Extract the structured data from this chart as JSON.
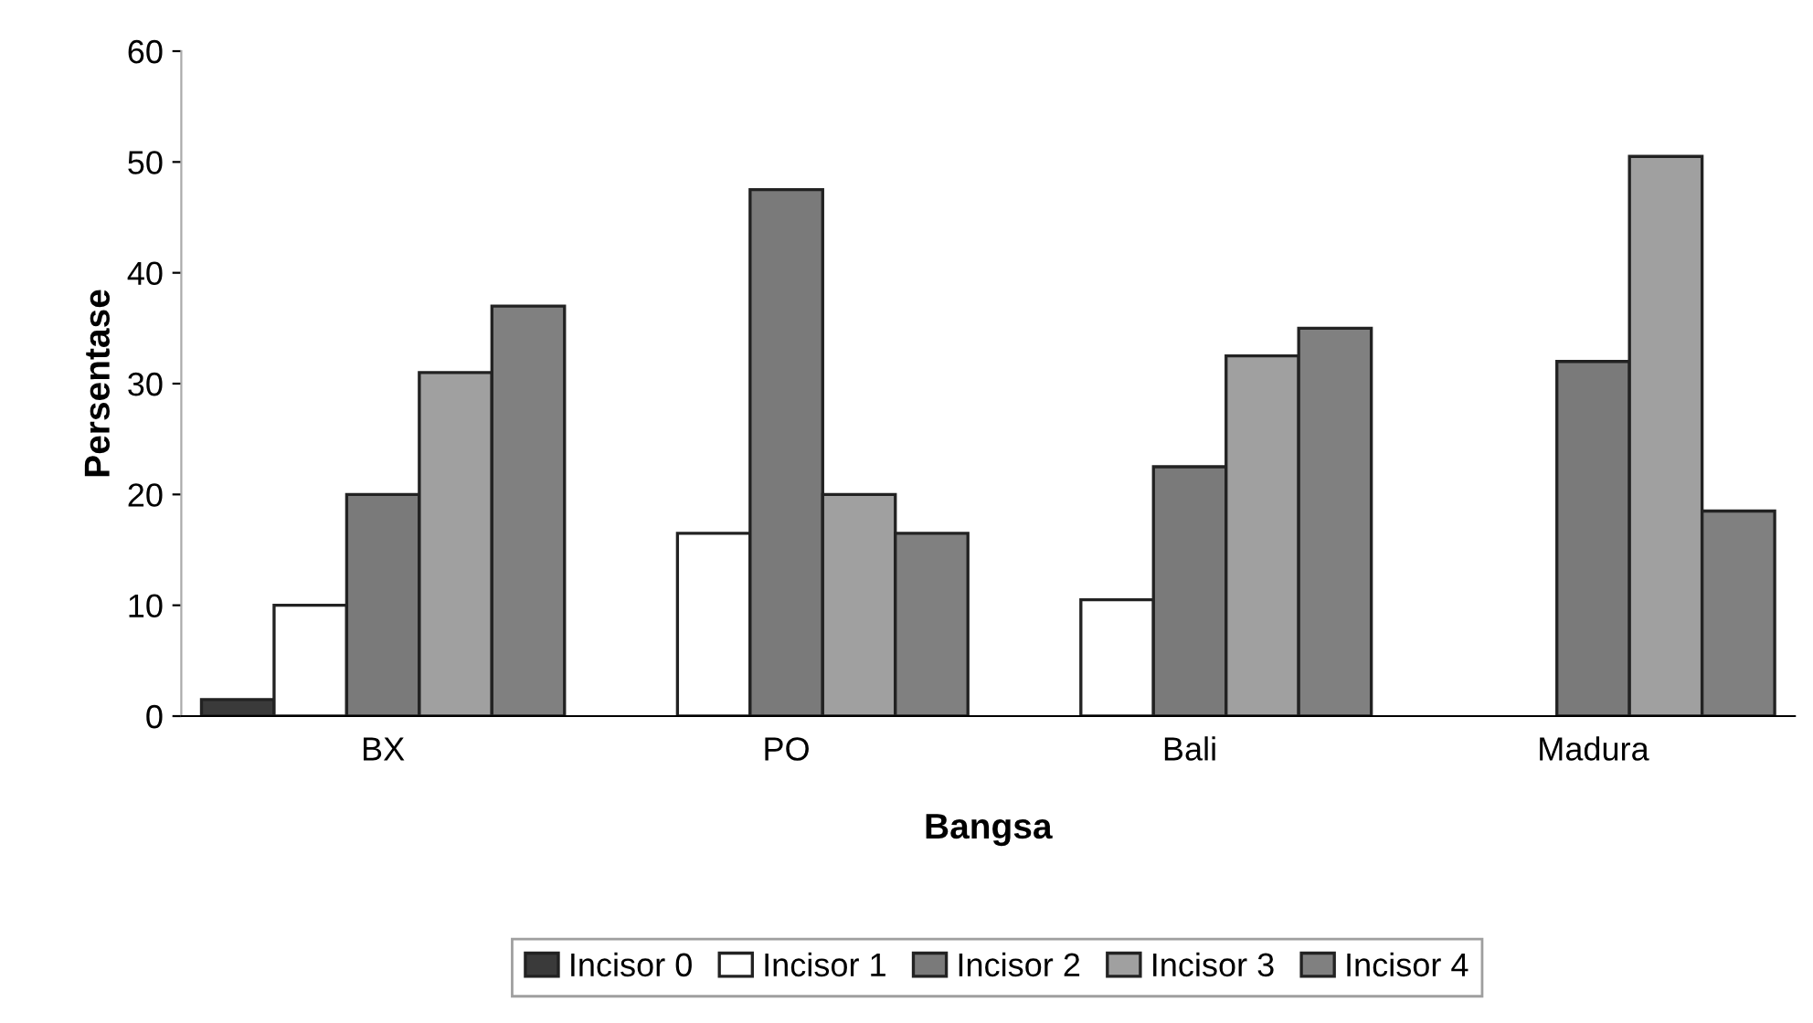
{
  "chart_data": {
    "type": "bar",
    "xlabel": "Bangsa",
    "ylabel": "Persentase",
    "categories": [
      "BX",
      "PO",
      "Bali",
      "Madura"
    ],
    "series": [
      {
        "name": "Incisor 0",
        "color": "#3a3a3a",
        "values": [
          1.5,
          null,
          null,
          null
        ]
      },
      {
        "name": "Incisor 1",
        "color": "#ffffff",
        "values": [
          10,
          16.5,
          10.5,
          null
        ]
      },
      {
        "name": "Incisor 2",
        "color": "#7a7a7a",
        "values": [
          20,
          47.5,
          22.5,
          32
        ]
      },
      {
        "name": "Incisor 3",
        "color": "#a0a0a0",
        "values": [
          31,
          20,
          32.5,
          50.5
        ]
      },
      {
        "name": "Incisor 4",
        "color": "#808080",
        "values": [
          37,
          16.5,
          35,
          18.5
        ]
      }
    ],
    "ylim": [
      0,
      60
    ],
    "yticks": [
      0,
      10,
      20,
      30,
      40,
      50,
      60
    ],
    "grid": false,
    "legend": "bottom"
  }
}
